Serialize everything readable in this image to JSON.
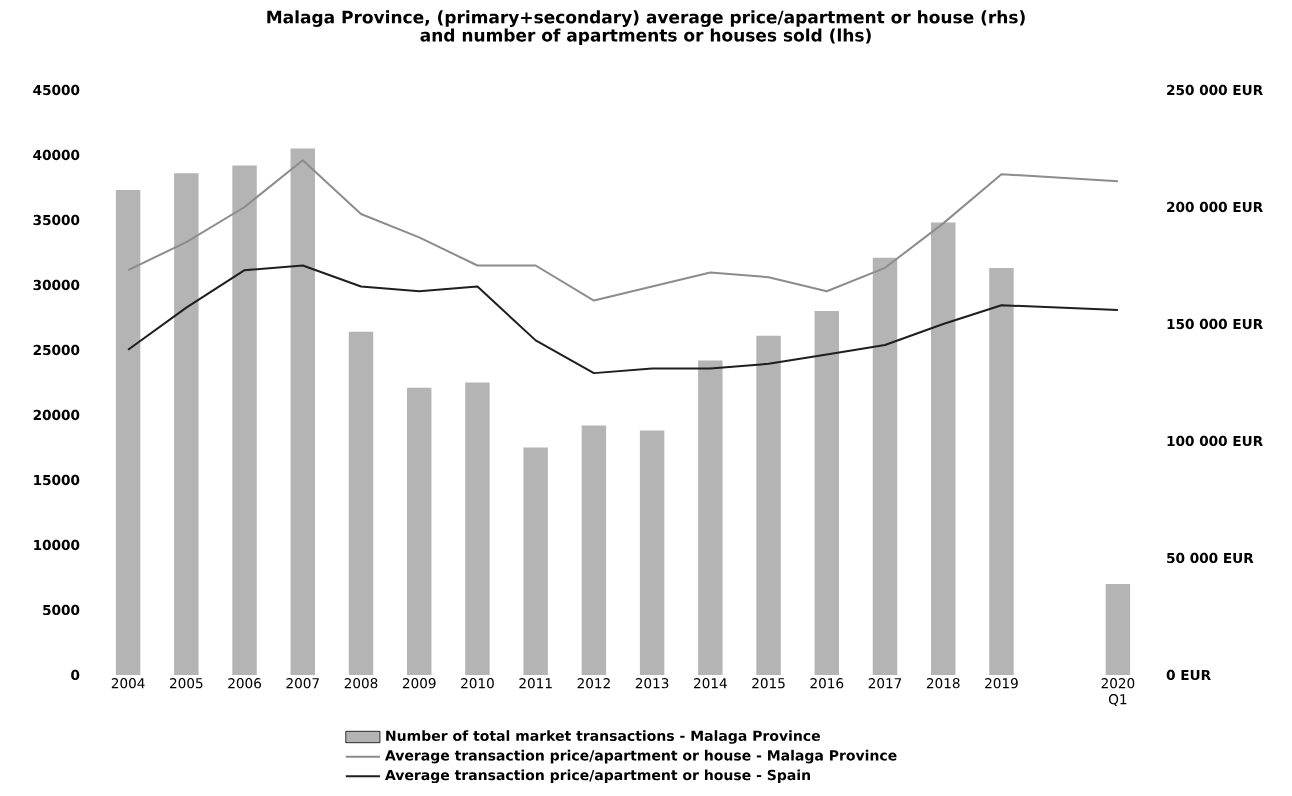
{
  "chart_data": {
    "type": "bar",
    "title": "Malaga Province,  (primary+secondary) average price/apartment or house (rhs)",
    "subtitle": "and number of apartments or houses sold (lhs)",
    "categories": [
      "2004",
      "2005",
      "2006",
      "2007",
      "2008",
      "2009",
      "2010",
      "2011",
      "2012",
      "2013",
      "2014",
      "2015",
      "2016",
      "2017",
      "2018",
      "2019",
      null,
      "2020 Q1"
    ],
    "series": [
      {
        "name": "Number of total  market transactions - Malaga Province",
        "color": "#b4b4b4",
        "values": [
          37300,
          38600,
          39200,
          40500,
          26400,
          22100,
          22500,
          17500,
          19200,
          18800,
          24200,
          26100,
          28000,
          32100,
          34800,
          31300,
          null,
          7000
        ]
      },
      {
        "name": "Average transaction price/apartment or house - Malaga Province",
        "type": "line",
        "axis": "y2",
        "color": "#8c8c8c",
        "values": [
          173000,
          185000,
          200000,
          220000,
          197000,
          187000,
          175000,
          175000,
          160000,
          166000,
          172000,
          170000,
          164000,
          174000,
          193000,
          214000,
          null,
          211000
        ]
      },
      {
        "name": "Average transaction price/apartment or house - Spain",
        "type": "line",
        "axis": "y2",
        "color": "#1e1e1e",
        "values": [
          139000,
          157000,
          173000,
          175000,
          166000,
          164000,
          166000,
          143000,
          129000,
          131000,
          131000,
          133000,
          137000,
          141000,
          150000,
          158000,
          null,
          156000
        ]
      }
    ],
    "ylim": [
      0,
      45000
    ],
    "yticks": [
      0,
      5000,
      10000,
      15000,
      20000,
      25000,
      30000,
      35000,
      40000,
      45000
    ],
    "y2lim": [
      0,
      250000
    ],
    "y2ticks": [
      {
        "value": 0,
        "label": "0 EUR"
      },
      {
        "value": 50000,
        "label": "50 000 EUR"
      },
      {
        "value": 100000,
        "label": "100 000 EUR"
      },
      {
        "value": 150000,
        "label": "150 000 EUR"
      },
      {
        "value": 200000,
        "label": "200 000 EUR"
      },
      {
        "value": 250000,
        "label": "250 000 EUR"
      }
    ],
    "legend": "bottom"
  }
}
